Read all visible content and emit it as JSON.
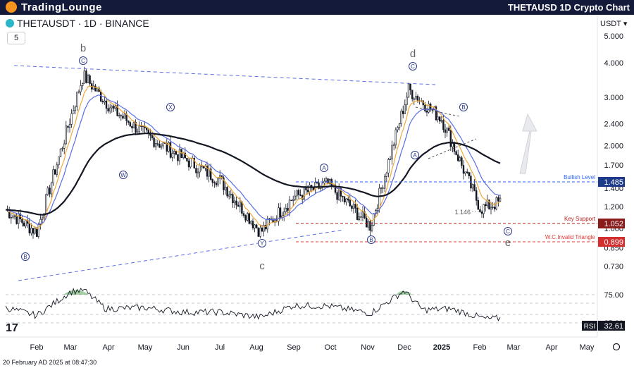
{
  "header": {
    "brand": "TradingLounge",
    "title": "THETAUSD 1D Crypto Chart"
  },
  "symbol": {
    "label": "THETAUSDT · 1D · BINANCE",
    "interval_box": "5",
    "currency": "USDT"
  },
  "footer": {
    "timestamp": "20 February AD 2025 at 08:47:30"
  },
  "colors": {
    "candle": "#131722",
    "ema_fast": "#f2a93b",
    "ema_mid": "#5b6ee1",
    "ema_slow": "#131722",
    "resistance": "#2962ff",
    "support": "#b71c1c",
    "invalid": "#e53935",
    "rsi": "#131722",
    "rsi_overbought_fill": "#43a047"
  },
  "chart_data": {
    "type": "candlestick",
    "title": "THETAUSD 1D Crypto Chart",
    "scale": "log",
    "x_ticks": [
      "Feb",
      "Mar",
      "Apr",
      "May",
      "Jun",
      "Jul",
      "Aug",
      "Sep",
      "Oct",
      "Nov",
      "Dec",
      "2025",
      "Feb",
      "Mar",
      "Apr",
      "May"
    ],
    "y_ticks": [
      "5.000",
      "4.000",
      "3.000",
      "2.400",
      "2.000",
      "1.700",
      "1.400",
      "1.200",
      "1.000",
      "0.850",
      "0.730"
    ],
    "y_values": [
      5.0,
      4.0,
      3.0,
      2.4,
      2.0,
      1.7,
      1.4,
      1.2,
      1.0,
      0.85,
      0.73
    ],
    "price_path": [
      [
        "Jan",
        1.17
      ],
      [
        "Feb",
        0.97
      ],
      [
        "Mar",
        3.6
      ],
      [
        "Apr",
        2.7
      ],
      [
        "May",
        2.2
      ],
      [
        "Jun",
        1.8
      ],
      [
        "Jul",
        1.5
      ],
      [
        "Aug",
        1.0
      ],
      [
        "Sep",
        1.3
      ],
      [
        "Oct",
        1.4
      ],
      [
        "Nov",
        1.02
      ],
      [
        "Dec",
        3.2
      ],
      [
        "2025",
        2.5
      ],
      [
        "Feb",
        1.2
      ]
    ],
    "levels": [
      {
        "label": "Bullish Level",
        "value": "1.485"
      },
      {
        "label": "Key Support",
        "value": "1.052"
      },
      {
        "label": "W.C.Invalid Triangle",
        "value": "0.899"
      }
    ],
    "low_marker": "1.146",
    "wave_labels": [
      {
        "text": "b"
      },
      {
        "text": "C"
      },
      {
        "text": "X"
      },
      {
        "text": "W"
      },
      {
        "text": "Y"
      },
      {
        "text": "c"
      },
      {
        "text": "A"
      },
      {
        "text": "B"
      },
      {
        "text": "d"
      },
      {
        "text": "C"
      },
      {
        "text": "A"
      },
      {
        "text": "B"
      },
      {
        "text": "C"
      },
      {
        "text": "e"
      },
      {
        "text": "B"
      }
    ],
    "rsi": {
      "label": "RSI",
      "value": "32.61",
      "levels": [
        75.0,
        25.0
      ],
      "level_labels": [
        "75.00",
        "25.00"
      ]
    }
  }
}
